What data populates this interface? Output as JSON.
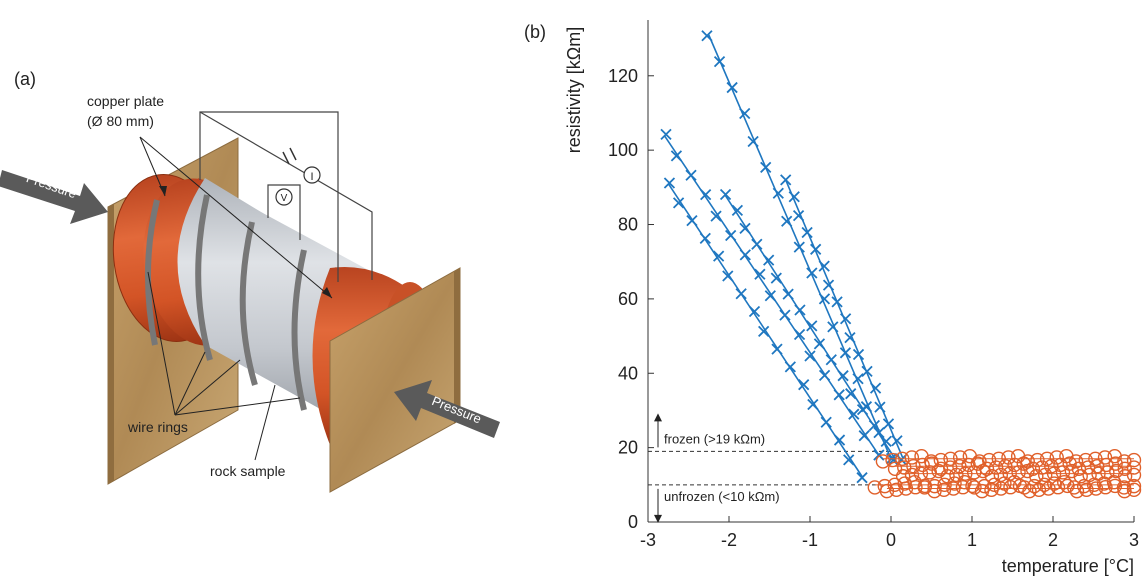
{
  "panel_a": {
    "label": "(a)",
    "copper_plate_label": "copper plate",
    "copper_plate_size": "(Ø 80 mm)",
    "wire_rings_label": "wire rings",
    "rock_sample_label": "rock sample",
    "pressure_left": "Pressure",
    "pressure_right": "Pressure",
    "ammeter_symbol": "I",
    "voltmeter_symbol": "V",
    "colors": {
      "copper": "#d85a2e",
      "rock": "#c9ccd1",
      "platen": "#b8935e",
      "wire": "#555555"
    }
  },
  "panel_b": {
    "label": "(b)",
    "frozen_label": "frozen (>19 kΩm)",
    "unfrozen_label": "unfrozen (<10 kΩm)",
    "frozen_threshold": 19,
    "unfrozen_threshold": 10,
    "colors": {
      "frozen": "#1f77c0",
      "unfrozen": "#e0602a"
    }
  },
  "chart_data": {
    "type": "scatter",
    "xlabel": "temperature [°C]",
    "ylabel": "resistivity [kΩm]",
    "xlim": [
      -3,
      3
    ],
    "ylim": [
      0,
      135
    ],
    "xticks": [
      -3,
      -2,
      -1,
      0,
      1,
      2,
      3
    ],
    "yticks": [
      0,
      20,
      40,
      60,
      80,
      100,
      120
    ],
    "xtick_labels": [
      "-3",
      "-2",
      "-1",
      "0",
      "1",
      "2",
      "3"
    ],
    "ytick_labels": [
      "0",
      "20",
      "40",
      "60",
      "80",
      "100",
      "120"
    ],
    "frozen_series": [
      {
        "x_range": [
          -2.25,
          0.0
        ],
        "y_range": [
          131,
          17
        ]
      },
      {
        "x_range": [
          -2.8,
          -0.15
        ],
        "y_range": [
          104,
          18
        ]
      },
      {
        "x_range": [
          -2.75,
          -0.35
        ],
        "y_range": [
          91,
          12
        ]
      },
      {
        "x_range": [
          -2.05,
          0.05
        ],
        "y_range": [
          88,
          17
        ]
      },
      {
        "x_range": [
          -1.3,
          0.15
        ],
        "y_range": [
          92,
          17
        ]
      }
    ],
    "unfrozen_series": [
      {
        "x_range": [
          -0.1,
          3.0
        ],
        "y": 17
      },
      {
        "x_range": [
          0.05,
          3.0
        ],
        "y": 15
      },
      {
        "x_range": [
          0.15,
          3.0
        ],
        "y": 13
      },
      {
        "x_range": [
          -0.2,
          3.0
        ],
        "y": 10
      },
      {
        "x_range": [
          -0.05,
          3.0
        ],
        "y": 9
      }
    ]
  }
}
